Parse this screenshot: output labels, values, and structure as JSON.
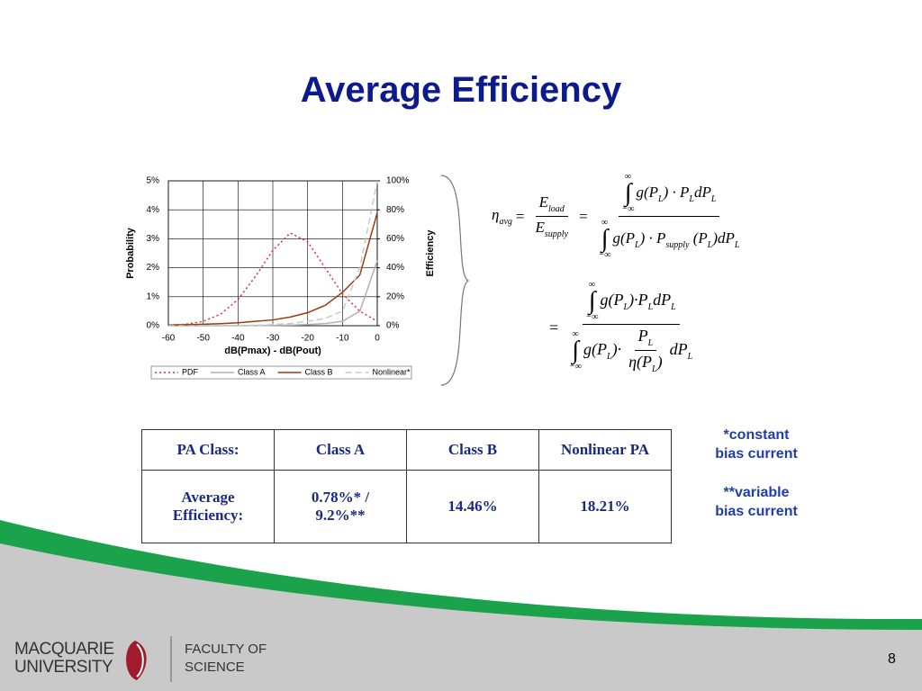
{
  "slide": {
    "title": "Average Efficiency",
    "page_number": "8"
  },
  "chart_data": {
    "type": "line",
    "x": [
      -60,
      -55,
      -50,
      -45,
      -40,
      -35,
      -30,
      -25,
      -20,
      -15,
      -10,
      -5,
      0
    ],
    "xlabel": "dB(Pmax) - dB(Pout)",
    "ylabel": "Probability",
    "y2label": "Efficiency",
    "xlim": [
      -60,
      0
    ],
    "xticks": [
      -60,
      -50,
      -40,
      -30,
      -20,
      -10,
      0
    ],
    "ylim": [
      0,
      5
    ],
    "yticks": [
      {
        "value": 0,
        "label": "0%"
      },
      {
        "value": 1,
        "label": "1%"
      },
      {
        "value": 2,
        "label": "2%"
      },
      {
        "value": 3,
        "label": "3%"
      },
      {
        "value": 4,
        "label": "4%"
      },
      {
        "value": 5,
        "label": "5%"
      }
    ],
    "y2lim": [
      0,
      100
    ],
    "y2ticks": [
      {
        "value": 0,
        "label": "0%"
      },
      {
        "value": 20,
        "label": "20%"
      },
      {
        "value": 40,
        "label": "40%"
      },
      {
        "value": 60,
        "label": "60%"
      },
      {
        "value": 80,
        "label": "80%"
      },
      {
        "value": 100,
        "label": "100%"
      }
    ],
    "grid": true,
    "series": [
      {
        "name": "PDF",
        "color": "#e03020",
        "style": "dotted",
        "values": [
          0.02,
          0.05,
          0.15,
          0.4,
          0.9,
          1.7,
          2.6,
          3.2,
          2.9,
          2.0,
          1.1,
          0.5,
          0.15
        ]
      },
      {
        "name": "Class A",
        "color": "#b0b0b0",
        "style": "solid",
        "axis": "y2",
        "values": [
          0,
          0,
          0,
          0,
          0,
          0.1,
          0.2,
          0.4,
          0.8,
          1.5,
          3,
          10,
          45
        ]
      },
      {
        "name": "Class B",
        "color": "#9a3a10",
        "style": "solid",
        "axis": "y2",
        "values": [
          0.5,
          0.7,
          1,
          1.4,
          2,
          3,
          4,
          6,
          9,
          14,
          23,
          35,
          78
        ]
      },
      {
        "name": "Nonlinear*",
        "color": "#c8c8c8",
        "style": "dashed",
        "axis": "y2",
        "values": [
          0,
          0,
          0,
          0,
          0.1,
          0.3,
          0.8,
          1.5,
          3,
          5,
          10,
          40,
          100
        ]
      }
    ]
  },
  "equation1": {
    "lhs": [
      "η",
      "avg"
    ],
    "eq1": "=",
    "ratio_num": [
      "E",
      "load"
    ],
    "ratio_den": [
      "E",
      "supply"
    ],
    "eq2": "=",
    "num": {
      "upper": "∞",
      "sign": "∫",
      "lower": "−∞",
      "parts": [
        "g(P",
        "L",
        ") · P",
        "L",
        "dP",
        "L"
      ]
    },
    "den": {
      "upper": "∞",
      "sign": "∫",
      "lower": "−∞",
      "parts": [
        "g(P",
        "L",
        ") · P",
        "supply",
        " (P",
        "L",
        ")dP",
        "L"
      ]
    }
  },
  "equation2": {
    "eq": "=",
    "num": {
      "upper": "∞",
      "sign": "∫",
      "lower": "−∞",
      "parts": [
        "g(P",
        "L",
        ")·P",
        "L",
        "dP",
        "L"
      ]
    },
    "den": {
      "upper": "∞",
      "sign": "∫",
      "lower": "−∞",
      "pre": [
        "g(P",
        "L",
        ")·"
      ],
      "frac_num": [
        "P",
        "L"
      ],
      "frac_den": [
        "η(P",
        "L",
        ")"
      ],
      "post": [
        "dP",
        "L"
      ]
    }
  },
  "table": {
    "header": [
      "PA Class:",
      "Class A",
      "Class B",
      "Nonlinear PA"
    ],
    "rows": [
      [
        [
          "Average",
          "Efficiency:"
        ],
        [
          "0.78%*   /",
          "9.2%**"
        ],
        [
          "14.46%"
        ],
        [
          "18.21%"
        ]
      ]
    ]
  },
  "notes": [
    [
      "*constant",
      "bias current"
    ],
    [
      "**variable",
      "bias current"
    ]
  ],
  "footer": {
    "university": [
      "MACQUARIE",
      "UNIVERSITY"
    ],
    "faculty": [
      "FACULTY OF",
      "SCIENCE"
    ]
  }
}
